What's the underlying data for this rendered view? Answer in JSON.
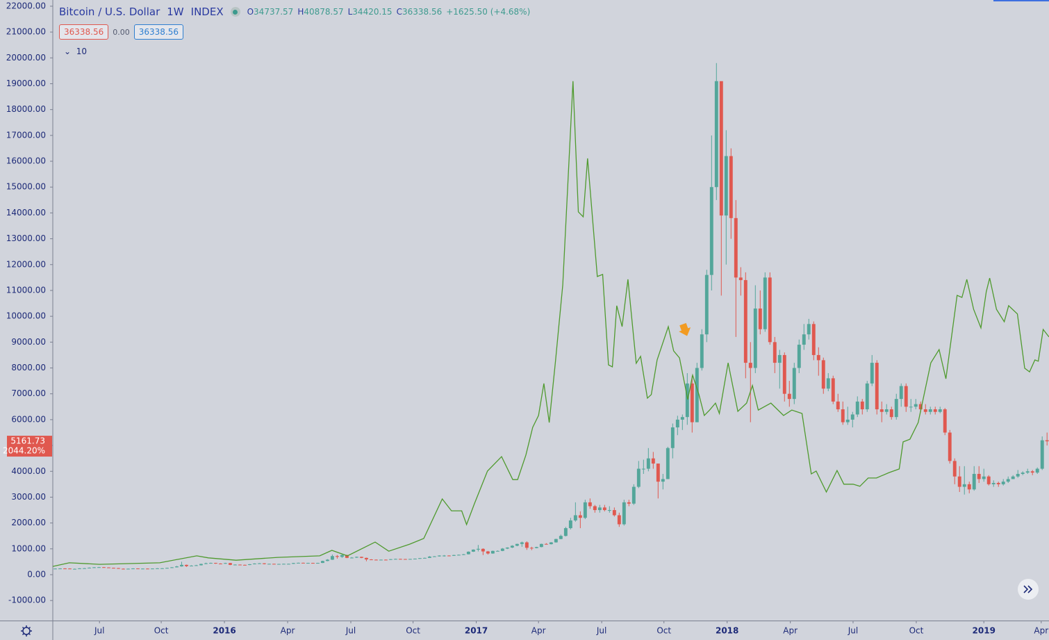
{
  "chart_data": {
    "type": "candlestick",
    "title": "Bitcoin / U.S. Dollar",
    "interval": "1W",
    "source": "INDEX",
    "ohlc": [
      {
        "label": "O",
        "value": 34737.57
      },
      {
        "label": "H",
        "value": 40878.57
      },
      {
        "label": "L",
        "value": 34420.15
      },
      {
        "label": "C",
        "value": 36338.56
      }
    ],
    "change": "+1625.50 (+4.68%)",
    "bid": 36338.56,
    "spread": "0.00",
    "ask": 36338.56,
    "indicator": 10,
    "last_price": 5161.73,
    "last_change": "2044.20%",
    "up_color": "#53a69a",
    "down_color": "#e0584f",
    "grid": false,
    "xlim": [
      -0.5,
      204.4
    ],
    "ylim": [
      -1775,
      22240
    ],
    "yticks": [
      {
        "value": -1000,
        "label": "-1000.00"
      },
      {
        "value": 0,
        "label": "0.00"
      },
      {
        "value": 1000,
        "label": "1000.00"
      },
      {
        "value": 2000,
        "label": "2000.00"
      },
      {
        "value": 3000,
        "label": "3000.00"
      },
      {
        "value": 4000,
        "label": "4000.00"
      },
      {
        "value": 5000,
        "label": "5000.00"
      },
      {
        "value": 6000,
        "label": "6000.00"
      },
      {
        "value": 7000,
        "label": "7000.00"
      },
      {
        "value": 8000,
        "label": "8000.00"
      },
      {
        "value": 9000,
        "label": "9000.00"
      },
      {
        "value": 10000,
        "label": "10000.00"
      },
      {
        "value": 11000,
        "label": "11000.00"
      },
      {
        "value": 12000,
        "label": "12000.00"
      },
      {
        "value": 13000,
        "label": "13000.00"
      },
      {
        "value": 14000,
        "label": "14000.00"
      },
      {
        "value": 15000,
        "label": "15000.00"
      },
      {
        "value": 16000,
        "label": "16000.00"
      },
      {
        "value": 17000,
        "label": "17000.00"
      },
      {
        "value": 18000,
        "label": "18000.00"
      },
      {
        "value": 19000,
        "label": "19000.00"
      },
      {
        "value": 20000,
        "label": "20000.00"
      },
      {
        "value": 21000,
        "label": "21000.00"
      },
      {
        "value": 22000,
        "label": "22000.00"
      }
    ],
    "xticks": [
      {
        "value": 9.1,
        "label": "Jul"
      },
      {
        "value": 21.8,
        "label": "Oct"
      },
      {
        "value": 34.8,
        "label": "2016"
      },
      {
        "value": 47.8,
        "label": "Apr"
      },
      {
        "value": 60.8,
        "label": "Jul"
      },
      {
        "value": 73.6,
        "label": "Oct"
      },
      {
        "value": 86.6,
        "label": "2017"
      },
      {
        "value": 99.4,
        "label": "Apr"
      },
      {
        "value": 112.4,
        "label": "Jul"
      },
      {
        "value": 125.2,
        "label": "Oct"
      },
      {
        "value": 138.2,
        "label": "2018"
      },
      {
        "value": 151.2,
        "label": "Apr"
      },
      {
        "value": 164.1,
        "label": "Jul"
      },
      {
        "value": 177.1,
        "label": "Oct"
      },
      {
        "value": 191.0,
        "label": "2019"
      },
      {
        "value": 202.8,
        "label": "Apr"
      }
    ],
    "candles": {
      "open": [
        230,
        235,
        240,
        237,
        225,
        225,
        245,
        250,
        270,
        285,
        290,
        280,
        265,
        255,
        230,
        225,
        230,
        240,
        230,
        235,
        232,
        238,
        245,
        248,
        262,
        285,
        320,
        380,
        330,
        350,
        365,
        415,
        440,
        455,
        430,
        425,
        450,
        380,
        390,
        380,
        375,
        405,
        430,
        440,
        410,
        420,
        415,
        415,
        420,
        420,
        450,
        460,
        450,
        455,
        445,
        455,
        530,
        580,
        720,
        690,
        760,
        650,
        660,
        690,
        650,
        590,
        580,
        570,
        580,
        575,
        600,
        610,
        605,
        600,
        608,
        620,
        640,
        650,
        700,
        710,
        740,
        740,
        730,
        760,
        770,
        790,
        890,
        970,
        1000,
        900,
        820,
        920,
        920,
        1010,
        1050,
        1120,
        1190,
        1250,
        1040,
        1030,
        1070,
        1190,
        1180,
        1250,
        1380,
        1500,
        1800,
        2100,
        2300,
        2200,
        2800,
        2650,
        2500,
        2600,
        2500,
        2500,
        2300,
        1950,
        2800,
        2750,
        3400,
        4100,
        4100,
        4500,
        4300,
        3600,
        3700,
        4900,
        5700,
        6000,
        6100,
        7400,
        5900,
        8000,
        9300,
        11600,
        15000,
        19100,
        13900,
        16200,
        13800,
        11500,
        11400,
        8200,
        8000,
        10300,
        9500,
        11500,
        9000,
        8200,
        8500,
        7000,
        6800,
        8000,
        8900,
        9300,
        9700,
        8500,
        8300,
        7200,
        7600,
        6700,
        6400,
        5900,
        6000,
        6200,
        6700,
        6400,
        7400,
        8200,
        6400,
        6300,
        6400,
        6100,
        6800,
        7300,
        6500,
        6500,
        6600,
        6400,
        6300,
        6400,
        6300,
        6400,
        5500,
        4400,
        3800,
        3400,
        3500,
        3300,
        3900,
        3700,
        3800,
        3500,
        3550,
        3500,
        3600,
        3700,
        3800,
        3900,
        3950,
        4000,
        3950,
        4100,
        5200
      ],
      "high": [
        245,
        248,
        250,
        245,
        235,
        250,
        258,
        280,
        295,
        300,
        298,
        285,
        270,
        260,
        240,
        238,
        248,
        245,
        240,
        242,
        242,
        252,
        255,
        270,
        295,
        340,
        500,
        390,
        365,
        380,
        425,
        465,
        465,
        460,
        440,
        460,
        455,
        400,
        395,
        390,
        410,
        440,
        450,
        445,
        425,
        425,
        420,
        425,
        425,
        455,
        465,
        465,
        460,
        460,
        460,
        540,
        600,
        780,
        760,
        780,
        770,
        680,
        700,
        695,
        660,
        600,
        590,
        585,
        590,
        605,
        620,
        615,
        610,
        612,
        625,
        645,
        660,
        720,
        720,
        750,
        760,
        750,
        770,
        780,
        800,
        900,
        980,
        1150,
        1020,
        920,
        930,
        940,
        1030,
        1060,
        1140,
        1200,
        1280,
        1290,
        1080,
        1080,
        1200,
        1220,
        1260,
        1390,
        1550,
        1850,
        2200,
        2800,
        2450,
        2900,
        2950,
        2700,
        2700,
        2700,
        2650,
        2600,
        2400,
        2900,
        2900,
        3500,
        4400,
        4450,
        4900,
        4750,
        4300,
        3900,
        4950,
        5850,
        6150,
        6200,
        7800,
        7700,
        8200,
        9500,
        11800,
        17000,
        19800,
        19000,
        17200,
        16500,
        14500,
        11900,
        11700,
        9000,
        11200,
        11000,
        11700,
        11700,
        9200,
        8700,
        8600,
        7500,
        8200,
        9100,
        9700,
        9900,
        9800,
        8800,
        8400,
        7800,
        7700,
        7000,
        6700,
        6500,
        6300,
        6900,
        6800,
        7500,
        8500,
        8300,
        6700,
        6600,
        6500,
        7000,
        7400,
        7400,
        6800,
        6800,
        6700,
        6600,
        6500,
        6500,
        6500,
        6450,
        5600,
        4500,
        4200,
        4200,
        3600,
        4200,
        4200,
        4100,
        3850,
        3650,
        3600,
        3700,
        3800,
        3850,
        4050,
        4000,
        4100,
        4050,
        4150,
        5350,
        5500
      ],
      "low": [
        222,
        228,
        230,
        220,
        215,
        218,
        238,
        245,
        262,
        278,
        272,
        260,
        250,
        225,
        210,
        218,
        225,
        225,
        225,
        228,
        228,
        232,
        238,
        242,
        255,
        280,
        310,
        300,
        325,
        340,
        355,
        405,
        430,
        420,
        415,
        420,
        370,
        370,
        375,
        365,
        370,
        400,
        425,
        400,
        405,
        405,
        405,
        410,
        410,
        415,
        445,
        445,
        445,
        440,
        440,
        450,
        520,
        570,
        620,
        650,
        640,
        640,
        650,
        640,
        520,
        570,
        560,
        565,
        570,
        570,
        595,
        600,
        595,
        595,
        600,
        615,
        630,
        645,
        690,
        700,
        700,
        720,
        725,
        750,
        760,
        785,
        880,
        900,
        760,
        780,
        810,
        900,
        910,
        990,
        1030,
        1100,
        1080,
        960,
        950,
        1020,
        1060,
        1170,
        1170,
        1240,
        1370,
        1480,
        1750,
        2050,
        1800,
        2150,
        2550,
        2400,
        2400,
        2450,
        2400,
        2250,
        1850,
        1900,
        2650,
        2700,
        3350,
        3900,
        4000,
        4100,
        2950,
        3300,
        3700,
        4500,
        5400,
        5600,
        5800,
        5500,
        5900,
        7900,
        9000,
        11000,
        14500,
        10800,
        12000,
        13000,
        9200,
        10800,
        7600,
        5900,
        7800,
        9300,
        9400,
        8900,
        7800,
        7200,
        6700,
        6500,
        6600,
        7800,
        8700,
        9100,
        8300,
        7700,
        7000,
        7100,
        6600,
        6300,
        5800,
        5800,
        5700,
        6100,
        6200,
        6300,
        7300,
        6200,
        5900,
        6200,
        6000,
        6000,
        6500,
        6300,
        6300,
        6400,
        6300,
        6200,
        6200,
        6200,
        6250,
        5400,
        4300,
        3500,
        3200,
        3100,
        3150,
        3250,
        3550,
        3600,
        3450,
        3400,
        3400,
        3450,
        3550,
        3700,
        3750,
        3850,
        3900,
        3850,
        3900,
        4050,
        5000
      ],
      "close": [
        235,
        240,
        237,
        225,
        225,
        245,
        250,
        270,
        285,
        290,
        280,
        265,
        255,
        230,
        225,
        230,
        240,
        230,
        235,
        232,
        238,
        245,
        248,
        262,
        285,
        320,
        380,
        330,
        350,
        365,
        415,
        440,
        455,
        430,
        425,
        450,
        380,
        390,
        380,
        375,
        405,
        430,
        440,
        410,
        420,
        415,
        415,
        420,
        420,
        450,
        460,
        450,
        455,
        445,
        455,
        530,
        580,
        720,
        690,
        760,
        650,
        660,
        690,
        650,
        590,
        580,
        570,
        580,
        575,
        600,
        610,
        605,
        600,
        608,
        620,
        640,
        650,
        700,
        710,
        740,
        740,
        730,
        760,
        770,
        790,
        890,
        970,
        1000,
        900,
        820,
        920,
        920,
        1010,
        1050,
        1120,
        1190,
        1250,
        1040,
        1030,
        1070,
        1190,
        1180,
        1250,
        1380,
        1500,
        1800,
        2100,
        2300,
        2200,
        2800,
        2650,
        2500,
        2600,
        2500,
        2500,
        2300,
        1950,
        2800,
        2750,
        3400,
        4100,
        4100,
        4500,
        4300,
        3600,
        3700,
        4900,
        5700,
        6000,
        6100,
        7400,
        5900,
        8000,
        9300,
        11600,
        15000,
        19100,
        13900,
        16200,
        13800,
        11500,
        11400,
        8200,
        8000,
        10300,
        9500,
        11500,
        9000,
        8200,
        8500,
        7000,
        6800,
        8000,
        8900,
        9300,
        9700,
        8500,
        8300,
        7200,
        7600,
        6700,
        6400,
        5900,
        6000,
        6200,
        6700,
        6400,
        7400,
        8200,
        6400,
        6300,
        6400,
        6100,
        6800,
        7300,
        6500,
        6500,
        6600,
        6400,
        6300,
        6400,
        6300,
        6400,
        5500,
        4400,
        3800,
        3400,
        3500,
        3300,
        3900,
        3700,
        3800,
        3500,
        3550,
        3500,
        3600,
        3700,
        3800,
        3900,
        3950,
        4000,
        3950,
        4100,
        5200,
        5162
      ]
    },
    "series": [
      {
        "color": "#4f9a2e",
        "x": [
          -0.5,
          2.9,
          9.1,
          21.5,
          25.1,
          29.1,
          31.5,
          37.2,
          45.8,
          54.4,
          56.9,
          60.1,
          65.8,
          68.6,
          72.9,
          75.8,
          79.6,
          81.5,
          83.6,
          84.6,
          86.2,
          88.9,
          91.8,
          94.1,
          95.1,
          96.8,
          98.2,
          99.4,
          100.5,
          101.6,
          102.9,
          104.4,
          106.5,
          107.6,
          108.6,
          109.5,
          111.5,
          112.6,
          113.8,
          114.6,
          115.5,
          116.6,
          117.8,
          119.5,
          120.4,
          121.8,
          122.6,
          123.8,
          126.1,
          127.2,
          128.4,
          130.1,
          131.1,
          132.4,
          133.5,
          134.6,
          135.8,
          136.6,
          138.4,
          140.4,
          142.2,
          143.4,
          144.6,
          147.2,
          149.8,
          151.5,
          153.6,
          155.5,
          156.5,
          158.6,
          160.8,
          162.2,
          164.1,
          165.5,
          167.2,
          168.9,
          171.5,
          173.6,
          174.4,
          175.8,
          177.5,
          180.1,
          181.8,
          183.2,
          185.5,
          186.5,
          187.5,
          188.9,
          190.4,
          191.5,
          192.2,
          193.6,
          195.2,
          196.1,
          197.9,
          199.4,
          200.4,
          201.5,
          202.2,
          203.2,
          204.4
        ],
        "values": [
          320,
          460,
          400,
          460,
          590,
          730,
          650,
          560,
          670,
          730,
          940,
          730,
          1260,
          910,
          1180,
          1400,
          2930,
          2470,
          2470,
          1940,
          2740,
          4010,
          4570,
          3680,
          3680,
          4630,
          5700,
          6160,
          7400,
          5890,
          8260,
          11220,
          19100,
          14040,
          13850,
          16110,
          11540,
          11620,
          8120,
          8040,
          10410,
          9600,
          11430,
          8180,
          8450,
          6830,
          6970,
          8310,
          9600,
          8660,
          8390,
          6780,
          7720,
          6970,
          6160,
          6370,
          6640,
          6240,
          8200,
          6320,
          6640,
          7320,
          6370,
          6640,
          6160,
          6370,
          6240,
          3900,
          4010,
          3200,
          4030,
          3500,
          3500,
          3420,
          3740,
          3740,
          3950,
          4090,
          5140,
          5240,
          5890,
          8200,
          8710,
          7580,
          10810,
          10730,
          11430,
          10270,
          9550,
          10950,
          11480,
          10270,
          9790,
          10410,
          10090,
          7990,
          7850,
          8310,
          8260,
          9490,
          9200
        ]
      }
    ]
  }
}
